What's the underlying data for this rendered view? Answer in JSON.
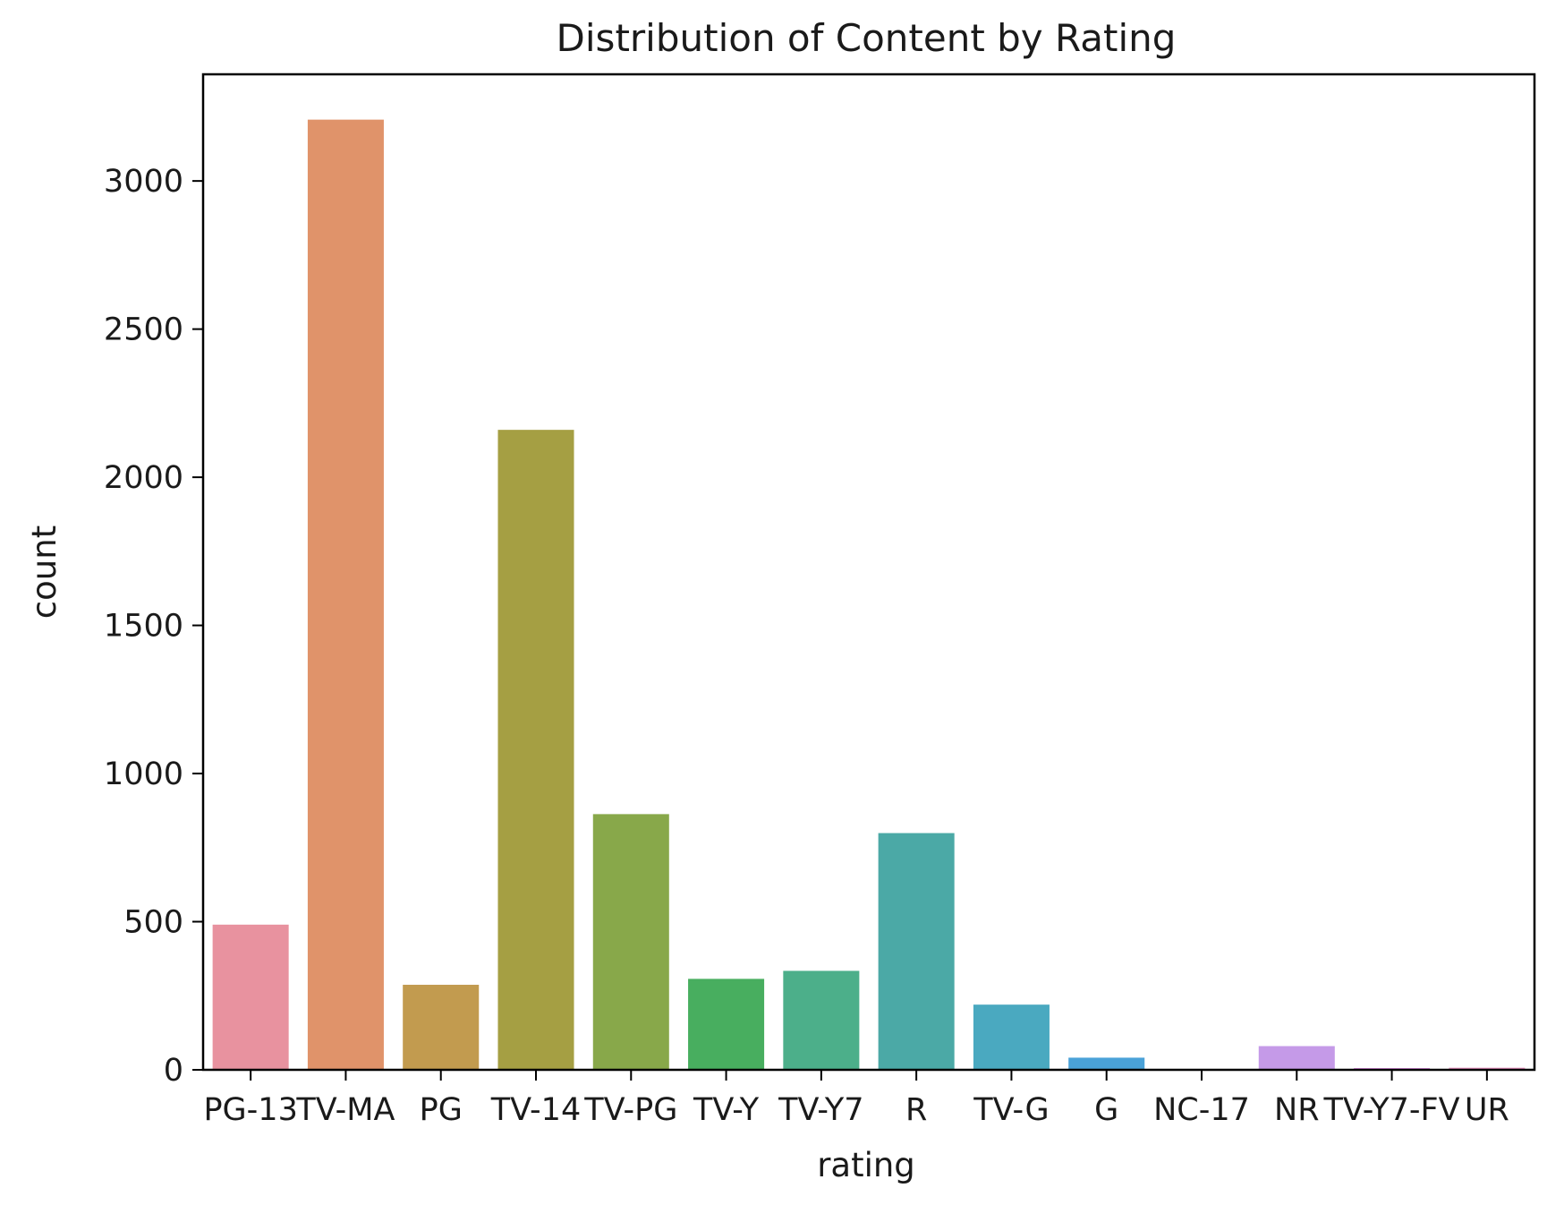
{
  "chart_data": {
    "type": "bar",
    "title": "Distribution of Content by Rating",
    "xlabel": "rating",
    "ylabel": "count",
    "categories": [
      "PG-13",
      "TV-MA",
      "PG",
      "TV-14",
      "TV-PG",
      "TV-Y",
      "TV-Y7",
      "R",
      "TV-G",
      "G",
      "NC-17",
      "NR",
      "TV-Y7-FV",
      "UR"
    ],
    "values": [
      490,
      3207,
      287,
      2160,
      863,
      307,
      334,
      799,
      220,
      41,
      3,
      80,
      6,
      7
    ],
    "colors": [
      "#e8929f",
      "#e0936a",
      "#c29b4f",
      "#a59f43",
      "#88a84a",
      "#48ae5f",
      "#4caf8a",
      "#4ba9a6",
      "#4aa9c0",
      "#4aa2d8",
      "#8ca1e6",
      "#c59ae8",
      "#de8ee1",
      "#e88fbf"
    ],
    "ylim": [
      0,
      3360
    ],
    "yticks": [
      0,
      500,
      1000,
      1500,
      2000,
      2500,
      3000
    ],
    "grid": false,
    "legend": "none"
  }
}
